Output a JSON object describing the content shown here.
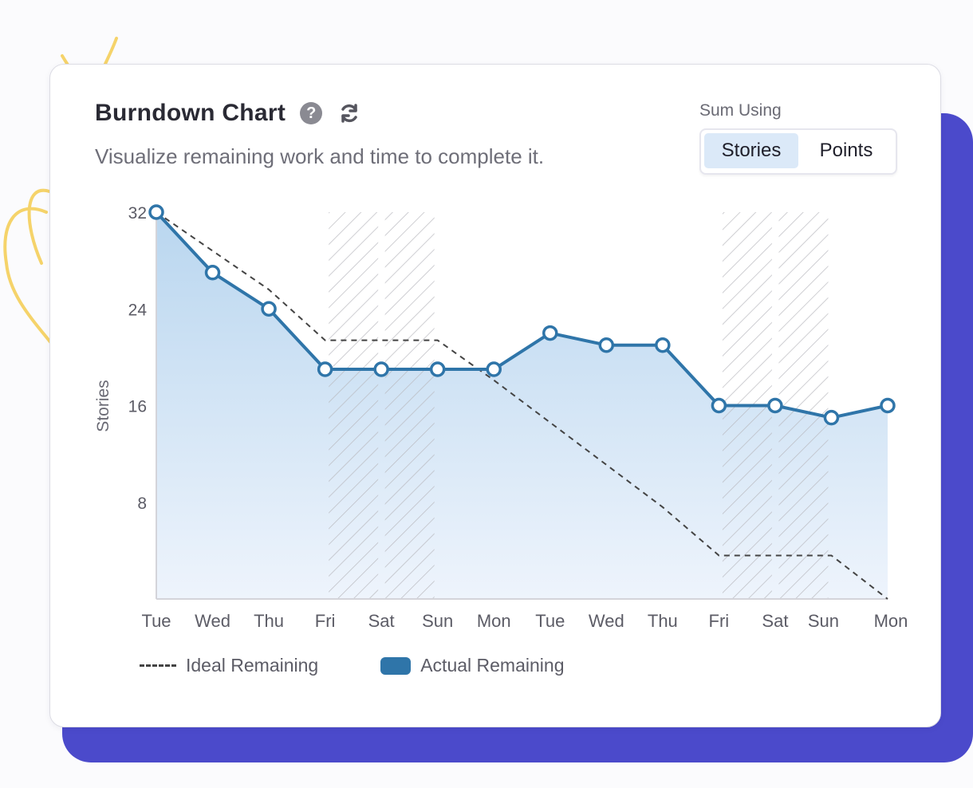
{
  "header": {
    "title": "Burndown Chart",
    "subtitle": "Visualize remaining work and time to complete it.",
    "help_icon": "question-circle-icon",
    "refresh_icon": "refresh-icon"
  },
  "sum_using": {
    "label": "Sum Using",
    "options": [
      "Stories",
      "Points"
    ],
    "selected": "Stories"
  },
  "colors": {
    "actual_line": "#2f75a9",
    "ideal_line": "#444444",
    "accent_background": "#4b4acb",
    "selected_toggle": "#dbe9f8"
  },
  "chart_data": {
    "type": "line",
    "title": "",
    "ylabel": "Stories",
    "xlabel": "",
    "x": [
      "Tue",
      "Wed",
      "Thu",
      "Fri",
      "Sat",
      "Sun",
      "Mon",
      "Tue",
      "Wed",
      "Thu",
      "Fri",
      "Sat",
      "Sun",
      "Mon"
    ],
    "ylim": [
      0,
      32
    ],
    "yticks": [
      8,
      16,
      24,
      32
    ],
    "non_working_days": [
      "Sat",
      "Sun"
    ],
    "series": [
      {
        "name": "Ideal Remaining",
        "style": "dashed",
        "values": [
          32,
          28.8,
          25.6,
          21.4,
          21.4,
          21.4,
          18.1,
          14.6,
          11.1,
          7.6,
          3.6,
          3.6,
          3.6,
          0
        ]
      },
      {
        "name": "Actual Remaining",
        "style": "area-line-markers",
        "values": [
          32,
          27,
          24,
          19,
          19,
          19,
          19,
          22,
          21,
          21,
          16,
          16,
          15,
          16
        ]
      }
    ],
    "legend": [
      "Ideal Remaining",
      "Actual Remaining"
    ],
    "legend_position": "bottom-left"
  }
}
